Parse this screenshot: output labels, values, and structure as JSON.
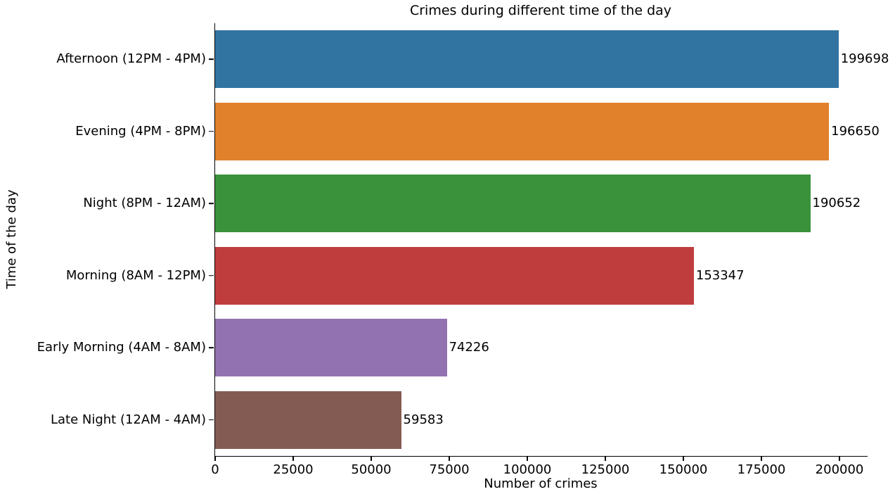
{
  "chart_data": {
    "type": "bar",
    "orientation": "horizontal",
    "title": "Crimes during different time of the day",
    "xlabel": "Number of crimes",
    "ylabel": "Time of the day",
    "categories": [
      "Afternoon (12PM - 4PM)",
      "Evening (4PM - 8PM)",
      "Night (8PM - 12AM)",
      "Morning (8AM - 12PM)",
      "Early Morning (4AM - 8AM)",
      "Late Night (12AM - 4AM)"
    ],
    "values": [
      199698,
      196650,
      190652,
      153347,
      74226,
      59583
    ],
    "value_labels": [
      "199698",
      "196650",
      "190652",
      "153347",
      "74226",
      "59583"
    ],
    "bar_colors": [
      "#3274a1",
      "#e1812c",
      "#3a923a",
      "#c03d3e",
      "#9372b2",
      "#845b53"
    ],
    "x_ticks": [
      0,
      25000,
      50000,
      75000,
      100000,
      125000,
      150000,
      175000,
      200000
    ],
    "x_tick_labels": [
      "0",
      "25000",
      "50000",
      "75000",
      "100000",
      "125000",
      "150000",
      "175000",
      "200000"
    ],
    "xlim": [
      0,
      209000
    ],
    "bar_height_fraction": 0.8,
    "grid": false,
    "legend": false,
    "background_color": "#ffffff",
    "text_color": "#000000",
    "spine_color": "#000000"
  }
}
